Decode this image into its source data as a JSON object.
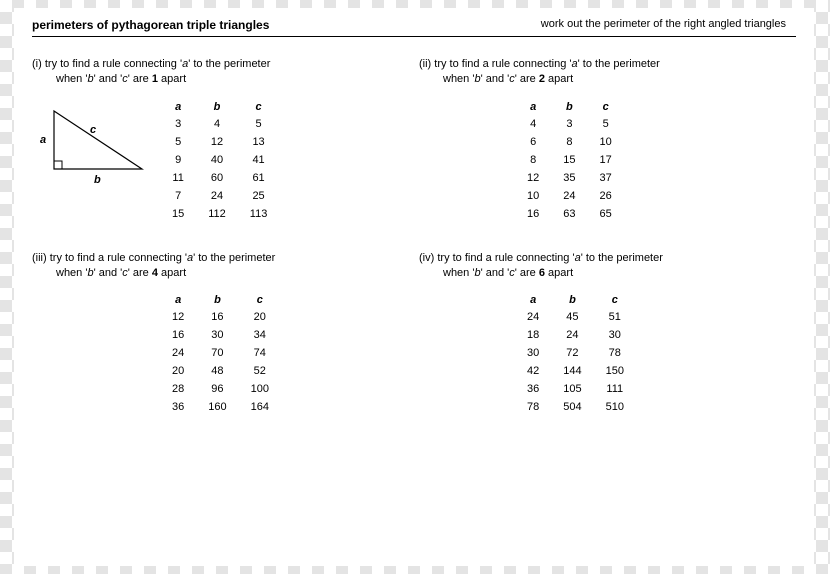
{
  "header": {
    "title": "perimeters of pythagorean triple triangles",
    "subtitle": "work out the perimeter of the right angled triangles"
  },
  "triangle": {
    "label_a": "a",
    "label_b": "b",
    "label_c": "c"
  },
  "columns": {
    "a": "a",
    "b": "b",
    "c": "c"
  },
  "sections": {
    "s1": {
      "label": "(i)",
      "line1_pre": "try to find a rule connecting '",
      "line1_var": "a",
      "line1_post": "' to the perimeter",
      "line2_pre": "when '",
      "line2_v1": "b",
      "line2_mid": "' and '",
      "line2_v2": "c",
      "line2_post1": "' are ",
      "line2_n": "1",
      "line2_post2": " apart",
      "rows": [
        {
          "a": "3",
          "b": "4",
          "c": "5"
        },
        {
          "a": "5",
          "b": "12",
          "c": "13"
        },
        {
          "a": "9",
          "b": "40",
          "c": "41"
        },
        {
          "a": "11",
          "b": "60",
          "c": "61"
        },
        {
          "a": "7",
          "b": "24",
          "c": "25"
        },
        {
          "a": "15",
          "b": "112",
          "c": "113"
        }
      ]
    },
    "s2": {
      "label": "(ii)",
      "line1_pre": "try to find a rule connecting '",
      "line1_var": "a",
      "line1_post": "' to the perimeter",
      "line2_pre": "when '",
      "line2_v1": "b",
      "line2_mid": "' and '",
      "line2_v2": "c",
      "line2_post1": "' are ",
      "line2_n": "2",
      "line2_post2": " apart",
      "rows": [
        {
          "a": "4",
          "b": "3",
          "c": "5"
        },
        {
          "a": "6",
          "b": "8",
          "c": "10"
        },
        {
          "a": "8",
          "b": "15",
          "c": "17"
        },
        {
          "a": "12",
          "b": "35",
          "c": "37"
        },
        {
          "a": "10",
          "b": "24",
          "c": "26"
        },
        {
          "a": "16",
          "b": "63",
          "c": "65"
        }
      ]
    },
    "s3": {
      "label": "(iii)",
      "line1_pre": "try to find a rule connecting '",
      "line1_var": "a",
      "line1_post": "' to the perimeter",
      "line2_pre": "when '",
      "line2_v1": "b",
      "line2_mid": "' and '",
      "line2_v2": "c",
      "line2_post1": "' are ",
      "line2_n": "4",
      "line2_post2": " apart",
      "rows": [
        {
          "a": "12",
          "b": "16",
          "c": "20"
        },
        {
          "a": "16",
          "b": "30",
          "c": "34"
        },
        {
          "a": "24",
          "b": "70",
          "c": "74"
        },
        {
          "a": "20",
          "b": "48",
          "c": "52"
        },
        {
          "a": "28",
          "b": "96",
          "c": "100"
        },
        {
          "a": "36",
          "b": "160",
          "c": "164"
        }
      ]
    },
    "s4": {
      "label": "(iv)",
      "line1_pre": "try to find a rule connecting '",
      "line1_var": "a",
      "line1_post": "' to the perimeter",
      "line2_pre": "when '",
      "line2_v1": "b",
      "line2_mid": "' and '",
      "line2_v2": "c",
      "line2_post1": "' are ",
      "line2_n": "6",
      "line2_post2": " apart",
      "rows": [
        {
          "a": "24",
          "b": "45",
          "c": "51"
        },
        {
          "a": "18",
          "b": "24",
          "c": "30"
        },
        {
          "a": "30",
          "b": "72",
          "c": "78"
        },
        {
          "a": "42",
          "b": "144",
          "c": "150"
        },
        {
          "a": "36",
          "b": "105",
          "c": "111"
        },
        {
          "a": "78",
          "b": "504",
          "c": "510"
        }
      ]
    }
  }
}
